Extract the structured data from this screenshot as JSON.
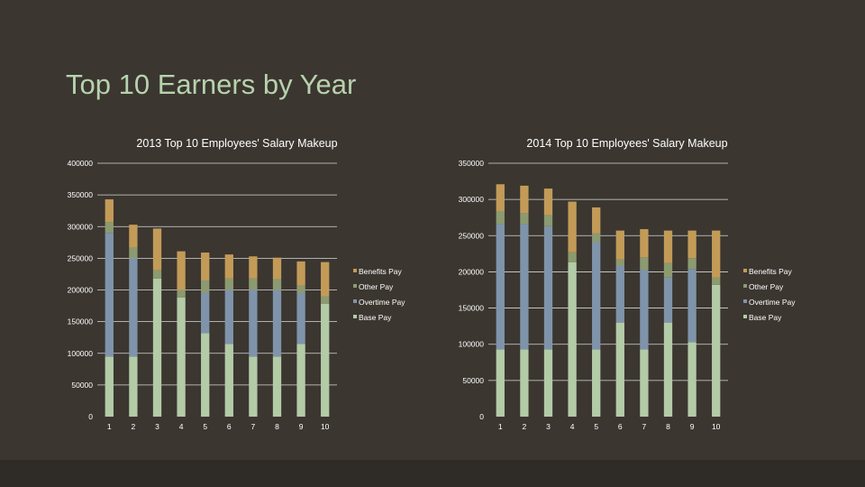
{
  "slide": {
    "title": "Top 10 Earners by Year"
  },
  "colors": {
    "background": "#3b3630",
    "footer": "#2f2b26",
    "title": "#b7d2ad",
    "Base Pay": "#b3cba7",
    "Overtime Pay": "#7f94aa",
    "Other Pay": "#8c9a70",
    "Benefits Pay": "#c39b58",
    "gridline": "#d8d8d8",
    "text": "#ffffff"
  },
  "chart_data": [
    {
      "type": "bar",
      "stacked": true,
      "title": "2013 Top 10 Employees' Salary Makeup",
      "categories": [
        "1",
        "2",
        "3",
        "4",
        "5",
        "6",
        "7",
        "8",
        "9",
        "10"
      ],
      "ylim": [
        0,
        400000
      ],
      "yticks": [
        0,
        50000,
        100000,
        150000,
        200000,
        250000,
        300000,
        350000,
        400000
      ],
      "grid": true,
      "legend_position": "right",
      "legend": [
        "Benefits Pay",
        "Other Pay",
        "Overtime Pay",
        "Base Pay"
      ],
      "series": [
        {
          "name": "Base Pay",
          "values": [
            95000,
            95000,
            218000,
            188000,
            132000,
            115000,
            95000,
            95000,
            115000,
            178000
          ]
        },
        {
          "name": "Overtime Pay",
          "values": [
            195000,
            155000,
            0,
            0,
            63000,
            85000,
            105000,
            105000,
            80000,
            0
          ]
        },
        {
          "name": "Other Pay",
          "values": [
            17000,
            17000,
            13000,
            12000,
            20000,
            18000,
            18000,
            17000,
            12000,
            12000
          ]
        },
        {
          "name": "Benefits Pay",
          "values": [
            36000,
            36000,
            66000,
            61000,
            44000,
            38000,
            35000,
            34000,
            38000,
            54000
          ]
        }
      ]
    },
    {
      "type": "bar",
      "stacked": true,
      "title": "2014 Top 10 Employees' Salary Makeup",
      "categories": [
        "1",
        "2",
        "3",
        "4",
        "5",
        "6",
        "7",
        "8",
        "9",
        "10"
      ],
      "ylim": [
        0,
        350000
      ],
      "yticks": [
        0,
        50000,
        100000,
        150000,
        200000,
        250000,
        300000,
        350000
      ],
      "grid": true,
      "legend_position": "right",
      "legend": [
        "Benefits Pay",
        "Other Pay",
        "Overtime Pay",
        "Base Pay"
      ],
      "series": [
        {
          "name": "Base Pay",
          "values": [
            93000,
            93000,
            93000,
            213000,
            93000,
            130000,
            93000,
            130000,
            103000,
            182000
          ]
        },
        {
          "name": "Overtime Pay",
          "values": [
            173000,
            173000,
            170000,
            0,
            148000,
            78000,
            110000,
            62000,
            101000,
            0
          ]
        },
        {
          "name": "Other Pay",
          "values": [
            18000,
            15000,
            15000,
            14000,
            12000,
            9000,
            17000,
            20000,
            15000,
            10000
          ]
        },
        {
          "name": "Benefits Pay",
          "values": [
            37000,
            38000,
            37000,
            70000,
            36000,
            40000,
            39000,
            45000,
            38000,
            65000
          ]
        }
      ]
    }
  ]
}
